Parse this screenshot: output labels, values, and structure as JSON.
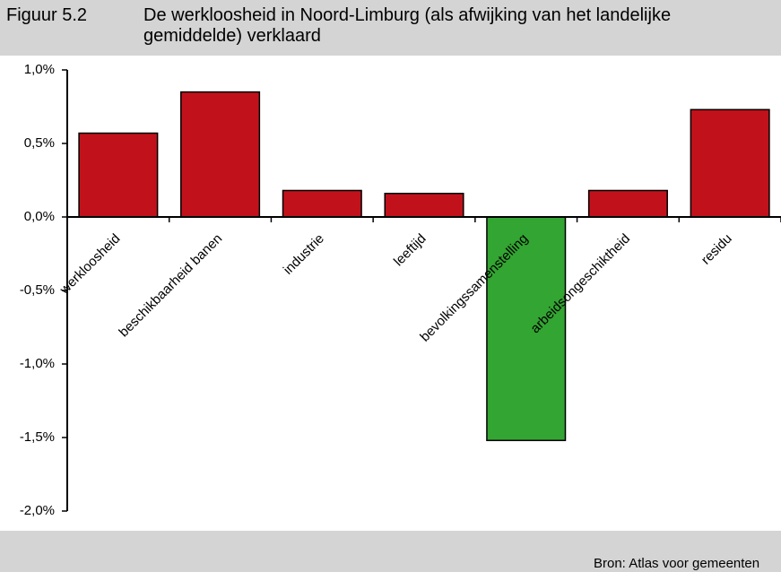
{
  "figure_label": "Figuur 5.2",
  "chart_data": {
    "type": "bar",
    "title": "De werkloosheid in Noord-Limburg (als afwijking van het landelijke gemiddelde) verklaard",
    "categories": [
      "werkloosheid",
      "beschikbaarheid banen",
      "industrie",
      "leeftijd",
      "bevolkingssamenstelling",
      "arbeidsongeschiktheid",
      "residu"
    ],
    "values": [
      0.57,
      0.85,
      0.18,
      0.16,
      -1.52,
      0.18,
      0.73
    ],
    "colors": [
      "#c1121c",
      "#c1121c",
      "#c1121c",
      "#c1121c",
      "#33a532",
      "#c1121c",
      "#c1121c"
    ],
    "ylim": [
      -2,
      1
    ],
    "yticks": [
      {
        "value": -2,
        "label": "-2,0%"
      },
      {
        "value": -1.5,
        "label": "-1,5%"
      },
      {
        "value": -1,
        "label": "-1,0%"
      },
      {
        "value": -0.5,
        "label": "-0,5%"
      },
      {
        "value": 0,
        "label": "0,0%"
      },
      {
        "value": 0.5,
        "label": "0,5%"
      },
      {
        "value": 1,
        "label": "1,0%"
      }
    ],
    "grid": false,
    "source": "Bron: Atlas voor gemeenten"
  }
}
